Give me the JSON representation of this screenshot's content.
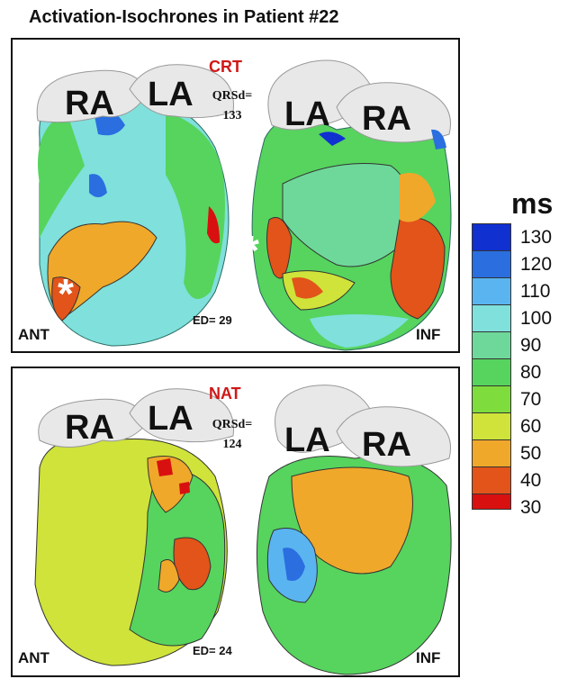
{
  "title": "Activation-Isochrones in Patient #22",
  "panels": [
    {
      "condition": "CRT",
      "qrs_label": "QRSd=",
      "qrs_value": "133",
      "ed_label": "ED= 29",
      "left_view": "ANT",
      "right_view": "INF",
      "atria_left": [
        "RA",
        "LA"
      ],
      "atria_right": [
        "LA",
        "RA"
      ],
      "marker": "*"
    },
    {
      "condition": "NAT",
      "qrs_label": "QRSd=",
      "qrs_value": "124",
      "ed_label": "ED= 24",
      "left_view": "ANT",
      "right_view": "INF",
      "atria_left": [
        "RA",
        "LA"
      ],
      "atria_right": [
        "LA",
        "RA"
      ]
    }
  ],
  "legend": {
    "unit": "ms",
    "ticks": [
      "130",
      "120",
      "110",
      "100",
      "90",
      "80",
      "70",
      "60",
      "50",
      "40",
      "30"
    ],
    "colors": [
      "#1030d0",
      "#2a6ee0",
      "#5ab4f0",
      "#7fe0dc",
      "#6ed89a",
      "#56d45e",
      "#7edc3c",
      "#cfe33a",
      "#f0a82a",
      "#e2541a",
      "#d81010"
    ]
  },
  "colors": {
    "early": "#d81010",
    "late": "#1030d0",
    "atria": "#e8e8e8",
    "condition_label": "#d01818"
  }
}
